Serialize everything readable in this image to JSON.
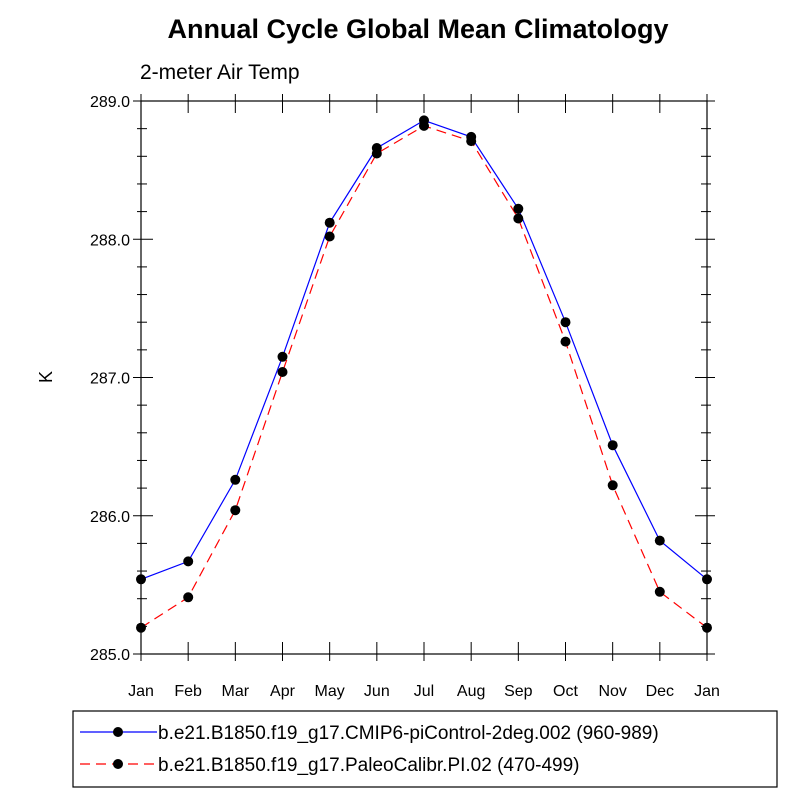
{
  "chart_data": {
    "type": "line",
    "title": "Annual Cycle Global Mean Climatology",
    "subtitle": "2-meter Air Temp",
    "xlabel": "",
    "ylabel": "K",
    "categories": [
      "Jan",
      "Feb",
      "Mar",
      "Apr",
      "May",
      "Jun",
      "Jul",
      "Aug",
      "Sep",
      "Oct",
      "Nov",
      "Dec",
      "Jan"
    ],
    "ylim": [
      285.0,
      289.0
    ],
    "yticks": [
      "285.0",
      "286.0",
      "287.0",
      "288.0",
      "289.0"
    ],
    "grid": false,
    "legend_position": "bottom",
    "series": [
      {
        "name": "b.e21.B1850.f19_g17.CMIP6-piControl-2deg.002 (960-989)",
        "color": "#0000ff",
        "line_style": "solid",
        "marker": "filled-circle",
        "values": [
          285.54,
          285.67,
          286.26,
          287.15,
          288.12,
          288.66,
          288.86,
          288.74,
          288.22,
          287.4,
          286.51,
          285.82,
          285.54
        ]
      },
      {
        "name": "b.e21.B1850.f19_g17.PaleoCalibr.PI.02 (470-499)",
        "color": "#ff0000",
        "line_style": "dashed",
        "marker": "filled-circle",
        "values": [
          285.19,
          285.41,
          286.04,
          287.04,
          288.02,
          288.62,
          288.82,
          288.71,
          288.15,
          287.26,
          286.22,
          285.45,
          285.19
        ]
      }
    ]
  }
}
